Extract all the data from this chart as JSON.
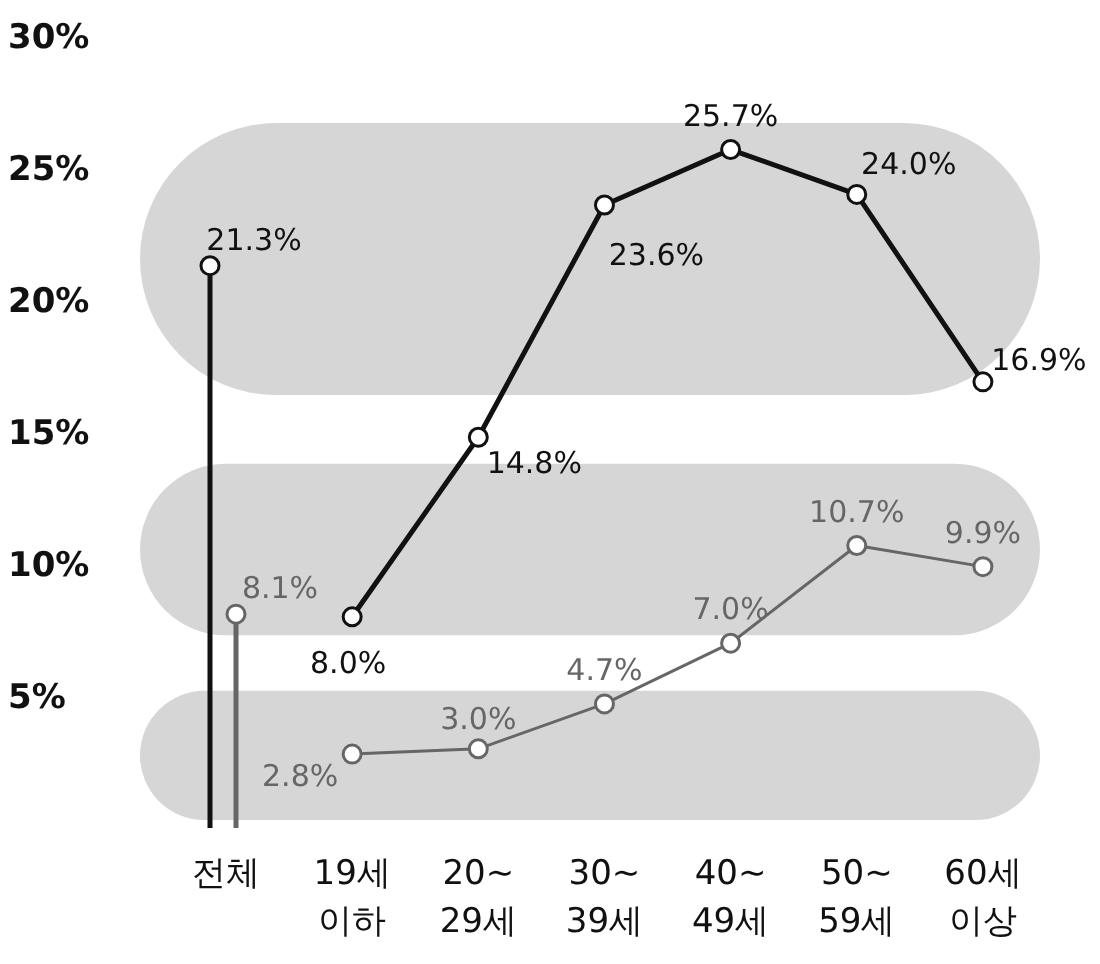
{
  "chart_data": {
    "type": "line",
    "categories": [
      "전체",
      "19세\n이하",
      "20~\n29세",
      "30~\n39세",
      "40~\n49세",
      "50~\n59세",
      "60세\n이상"
    ],
    "series": [
      {
        "type": "lollipop",
        "color": "#111111",
        "values": [
          21.3,
          null,
          null,
          null,
          null,
          null,
          null
        ],
        "value_labels": [
          "21.3%",
          null,
          null,
          null,
          null,
          null,
          null
        ]
      },
      {
        "type": "lollipop",
        "color": "#666666",
        "values": [
          8.1,
          null,
          null,
          null,
          null,
          null,
          null
        ],
        "value_labels": [
          "8.1%",
          null,
          null,
          null,
          null,
          null,
          null
        ]
      },
      {
        "color": "#111111",
        "values": [
          null,
          8.0,
          14.8,
          23.6,
          25.7,
          24.0,
          16.9
        ],
        "value_labels": [
          null,
          "8.0%",
          "14.8%",
          "23.6%",
          "25.7%",
          "24.0%",
          "16.9%"
        ]
      },
      {
        "color": "#666666",
        "values": [
          null,
          2.8,
          3.0,
          4.7,
          7.0,
          10.7,
          9.9
        ],
        "value_labels": [
          null,
          "2.8%",
          "3.0%",
          "4.7%",
          "7.0%",
          "10.7%",
          "9.9%"
        ]
      }
    ],
    "ylim": [
      0,
      30
    ],
    "yticks": [
      {
        "value": 5,
        "label": "5%"
      },
      {
        "value": 10,
        "label": "10%"
      },
      {
        "value": 15,
        "label": "15%"
      },
      {
        "value": 20,
        "label": "20%"
      },
      {
        "value": 25,
        "label": "25%"
      },
      {
        "value": 30,
        "label": "30%"
      }
    ],
    "bands": [
      {
        "axis": "y",
        "from": 16.4,
        "to": 26.7,
        "color": "#d6d6d6"
      },
      {
        "axis": "y",
        "from": 7.3,
        "to": 13.8,
        "color": "#d6d6d6"
      },
      {
        "axis": "y",
        "from": 0.3,
        "to": 5.2,
        "color": "#d6d6d6"
      }
    ],
    "marker": "circle",
    "grid": false
  }
}
